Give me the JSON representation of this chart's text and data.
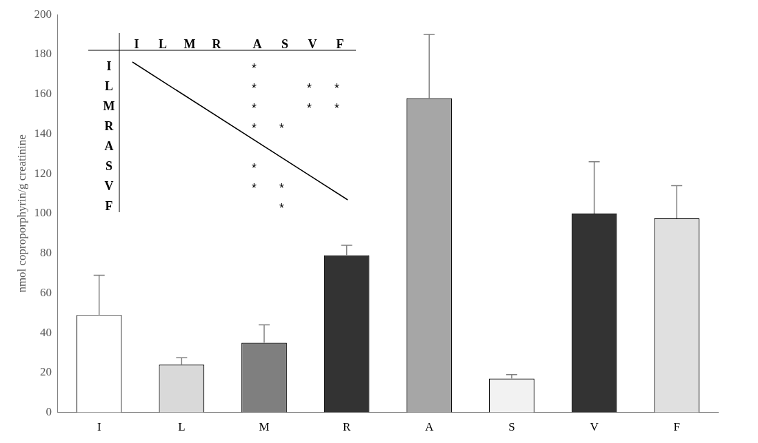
{
  "chart_data": {
    "type": "bar",
    "ylabel": "nmol coproporphyrin/g creatinine",
    "categories": [
      "I",
      "L",
      "M",
      "R",
      "A",
      "S",
      "V",
      "F"
    ],
    "values": [
      49,
      24,
      35,
      79,
      158,
      17,
      100,
      97.5
    ],
    "errors": [
      [
        49,
        69
      ],
      [
        24,
        27.5
      ],
      [
        35,
        44
      ],
      [
        79,
        84
      ],
      [
        158,
        190
      ],
      [
        17,
        19
      ],
      [
        100,
        126
      ],
      [
        97.5,
        114
      ]
    ],
    "colors": [
      "#ffffff",
      "#d9d9d9",
      "#7f7f7f",
      "#333333",
      "#a6a6a6",
      "#f2f2f2",
      "#333333",
      "#e0e0e0"
    ],
    "ylim": [
      0,
      200
    ],
    "yticks": [
      0,
      20,
      40,
      60,
      80,
      100,
      120,
      140,
      160,
      180,
      200
    ],
    "grid": false,
    "legend": false,
    "annotations": [
      "*\n*   * *\n*   * *\n* *\n\n*\n* *\n  *"
    ]
  }
}
